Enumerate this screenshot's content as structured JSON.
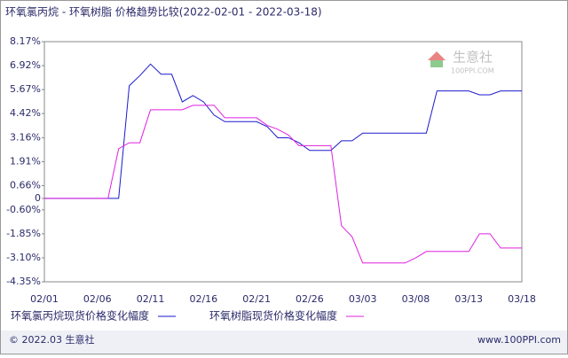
{
  "chart_data": {
    "type": "line",
    "title": "环氧氯丙烷 - 环氧树脂 价格趋势比较(2022-02-01 - 2022-03-18)",
    "categories": [
      "02/01",
      null,
      null,
      null,
      null,
      "02/06",
      null,
      null,
      null,
      null,
      "02/11",
      null,
      null,
      null,
      null,
      "02/16",
      null,
      null,
      null,
      null,
      "02/21",
      null,
      null,
      null,
      null,
      "02/26",
      null,
      null,
      null,
      null,
      "03/03",
      null,
      null,
      null,
      null,
      "03/08",
      null,
      null,
      null,
      null,
      "03/13",
      null,
      null,
      null,
      null,
      "03/18"
    ],
    "series": [
      {
        "name": "环氧氯丙烷现货价格变化幅度",
        "color": "#1a1acc",
        "values": [
          0,
          0,
          0,
          0,
          0,
          0,
          0,
          0,
          5.87,
          6.4,
          7.0,
          6.47,
          6.47,
          5.03,
          5.36,
          5.03,
          4.34,
          4.0,
          4.0,
          4.0,
          4.0,
          3.74,
          3.16,
          3.16,
          2.9,
          2.5,
          2.5,
          2.5,
          3.0,
          3.0,
          3.4,
          3.4,
          3.4,
          3.4,
          3.4,
          3.4,
          3.4,
          5.6,
          5.6,
          5.6,
          5.6,
          5.4,
          5.4,
          5.6,
          5.6,
          5.6
        ]
      },
      {
        "name": "环氧树脂现货价格变化幅度",
        "color": "#e020e0",
        "values": [
          0,
          0,
          0,
          0,
          0,
          0,
          0,
          2.59,
          2.9,
          2.9,
          4.62,
          4.62,
          4.62,
          4.62,
          4.85,
          4.85,
          4.85,
          4.2,
          4.2,
          4.2,
          4.2,
          3.8,
          3.6,
          3.3,
          2.75,
          2.75,
          2.75,
          2.75,
          -1.43,
          -2.0,
          -3.37,
          -3.37,
          -3.37,
          -3.37,
          -3.37,
          -3.1,
          -2.77,
          -2.77,
          -2.77,
          -2.77,
          -2.77,
          -1.85,
          -1.85,
          -2.59,
          -2.59,
          -2.59
        ]
      }
    ],
    "ylim": [
      -4.35,
      8.17
    ],
    "yticks": [
      {
        "value": 8.17,
        "label": "8.17%"
      },
      {
        "value": 6.92,
        "label": "6.92%"
      },
      {
        "value": 5.67,
        "label": "5.67%"
      },
      {
        "value": 4.42,
        "label": "4.42%"
      },
      {
        "value": 3.16,
        "label": "3.16%"
      },
      {
        "value": 1.91,
        "label": "1.91%"
      },
      {
        "value": 0.66,
        "label": "0.66%"
      },
      0,
      {
        "value": -0.6,
        "label": "-0.60%"
      },
      {
        "value": -1.85,
        "label": "-1.85%"
      },
      {
        "value": -3.1,
        "label": "-3.10%"
      },
      {
        "value": -4.35,
        "label": "-4.35%"
      }
    ],
    "grid": false
  },
  "watermark": {
    "name": "生意社",
    "site": "100PPI.COM"
  },
  "footer": {
    "left": "© 2022.03 生意社",
    "right": "www.100PPI.com"
  }
}
